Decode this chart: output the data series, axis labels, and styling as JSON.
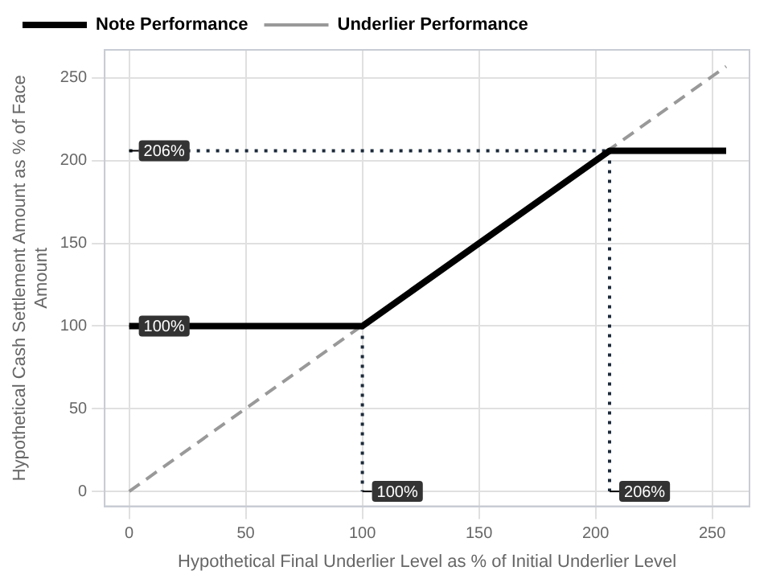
{
  "chart_data": {
    "type": "line",
    "xlabel": "Hypothetical Final Underlier Level as % of Initial Underlier Level",
    "ylabel": "Hypothetical Cash Settlement Amount as % of Face Amount",
    "series": [
      {
        "name": "Note Performance",
        "color": "#000000",
        "x": [
          0,
          100,
          206,
          256
        ],
        "values": [
          100,
          100,
          206,
          206
        ],
        "line_style": "solid"
      },
      {
        "name": "Underlier Performance",
        "color": "#999999",
        "x": [
          0,
          256
        ],
        "values": [
          0,
          257
        ],
        "line_style": "dashed"
      },
      {
        "color": "#1c2a3a",
        "x": [
          0,
          206
        ],
        "values": [
          206,
          206
        ],
        "line_style": "dotted"
      },
      {
        "color": "#1c2a3a",
        "x": [
          206,
          206
        ],
        "values": [
          206,
          0
        ],
        "line_style": "dotted"
      },
      {
        "color": "#1c2a3a",
        "x": [
          100,
          100
        ],
        "values": [
          100,
          0
        ],
        "line_style": "dotted"
      }
    ],
    "annotations": [
      {
        "text": "206%",
        "x": 0,
        "y": 206
      },
      {
        "text": "100%",
        "x": 0,
        "y": 100
      },
      {
        "text": "100%",
        "x": 100,
        "y": 0
      },
      {
        "text": "206%",
        "x": 206,
        "y": 0
      }
    ],
    "xlim": [
      -10.5,
      266
    ],
    "xticks": [
      0,
      50,
      100,
      150,
      200,
      250
    ],
    "ylim": [
      -9,
      267
    ],
    "yticks": [
      0,
      50,
      100,
      150,
      200,
      250
    ],
    "grid": true,
    "legend": "top left",
    "marker": "none"
  }
}
